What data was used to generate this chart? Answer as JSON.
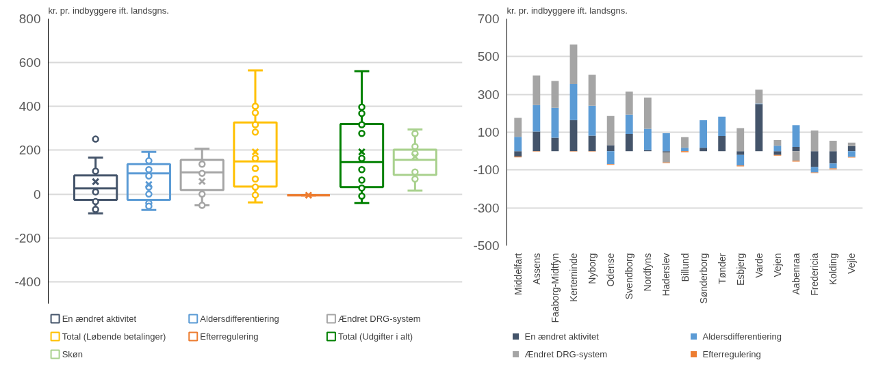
{
  "chart_data": [
    {
      "type": "box",
      "ylabel": "kr. pr. indbyggere ift. landsgns.",
      "categories": [
        null
      ],
      "ylim": [
        -500,
        800
      ],
      "yticks": [
        -400,
        -200,
        0,
        200,
        400,
        600,
        800
      ],
      "grid": "y",
      "legend": "bottom",
      "tick_labels": "y",
      "marker": "circle",
      "series": [
        {
          "name": "En ændret aktivitet",
          "color": "#44546a",
          "boxes": [
            {
              "low": -88,
              "q1": -26,
              "median": 26,
              "q3": 85,
              "high": 166,
              "mean": 57,
              "outliers": [
                251,
                105,
                10,
                -34,
                -70
              ]
            }
          ]
        },
        {
          "name": "Aldersdifferentiering",
          "color": "#5b9bd5",
          "boxes": [
            {
              "low": -72,
              "q1": -26,
              "median": 95,
              "q3": 137,
              "high": 193,
              "mean": 44,
              "outliers": [
                152,
                112,
                83,
                32,
                0,
                -41,
                -55
              ]
            }
          ]
        },
        {
          "name": "Ændret DRG-system",
          "color": "#a5a5a5",
          "boxes": [
            {
              "low": -51,
              "q1": 18,
              "median": 99,
              "q3": 156,
              "high": 207,
              "mean": 58,
              "outliers": [
                137,
                95,
                0,
                -51
              ]
            }
          ]
        },
        {
          "name": "Total (Løbende betalinger)",
          "color": "#ffc000",
          "boxes": [
            {
              "low": -38,
              "q1": 35,
              "median": 149,
              "q3": 327,
              "high": 565,
              "mean": 193,
              "outliers": [
                401,
                371,
                317,
                283,
                163,
                117,
                69,
                32,
                -4
              ]
            }
          ]
        },
        {
          "name": "Efterregulering",
          "color": "#ed7d31",
          "boxes": [
            {
              "low": -5,
              "q1": -5,
              "median": -5,
              "q3": -5,
              "high": -5,
              "mean": -5
            }
          ]
        },
        {
          "name": "Total (Udgifter i alt)",
          "color": "#008000",
          "boxes": [
            {
              "low": -41,
              "q1": 32,
              "median": 146,
              "q3": 320,
              "high": 561,
              "mean": 193,
              "outliers": [
                397,
                368,
                317,
                277,
                163,
                112,
                64,
                28,
                -9
              ]
            }
          ]
        },
        {
          "name": "Skøn",
          "color": "#a9d18e",
          "boxes": [
            {
              "low": 16,
              "q1": 88,
              "median": 156,
              "q3": 203,
              "high": 295,
              "mean": 171,
              "outliers": [
                276,
                217,
                185,
                101,
                69
              ]
            }
          ]
        }
      ]
    },
    {
      "type": "bar",
      "stacked": true,
      "ylabel": "kr. pr. indbyggere ift. landsgns.",
      "ylim": [
        -500,
        700
      ],
      "yticks": [
        -500,
        -300,
        -100,
        100,
        300,
        500,
        700
      ],
      "grid": "y",
      "legend": "bottom",
      "categories": [
        "Middelfart",
        "Assens",
        "Faaborg-Midtfyn",
        "Kerteminde",
        "Nyborg",
        "Odense",
        "Svendborg",
        "Nordfyns",
        "Haderslev",
        "Billund",
        "Sønderborg",
        "Tønder",
        "Esbjerg",
        "Varde",
        "Vejen",
        "Aabenraa",
        "Fredericia",
        "Kolding",
        "Vejle"
      ],
      "series": [
        {
          "name": "En ændret aktivitet",
          "color": "#44546a",
          "values": [
            -29,
            104,
            71,
            164,
            82,
            31,
            91,
            5,
            -7,
            0,
            18,
            80,
            -20,
            249,
            -20,
            22,
            -84,
            -65,
            27
          ]
        },
        {
          "name": "Aldersdifferentiering",
          "color": "#5b9bd5",
          "values": [
            76,
            140,
            158,
            191,
            158,
            -69,
            102,
            113,
            95,
            18,
            145,
            102,
            -56,
            3,
            29,
            115,
            -29,
            -27,
            -31
          ]
        },
        {
          "name": "Ændret DRG-system",
          "color": "#a5a5a5",
          "values": [
            100,
            156,
            142,
            209,
            164,
            155,
            122,
            165,
            -53,
            56,
            null,
            null,
            122,
            73,
            29,
            -51,
            109,
            55,
            18
          ]
        },
        {
          "name": "Efterregulering",
          "color": "#ed7d31",
          "values": [
            -4,
            -2,
            0,
            -2,
            -2,
            -4,
            0,
            0,
            -4,
            -7,
            0,
            0,
            -5,
            0,
            -4,
            -4,
            -3,
            -4,
            -3
          ]
        }
      ]
    }
  ]
}
